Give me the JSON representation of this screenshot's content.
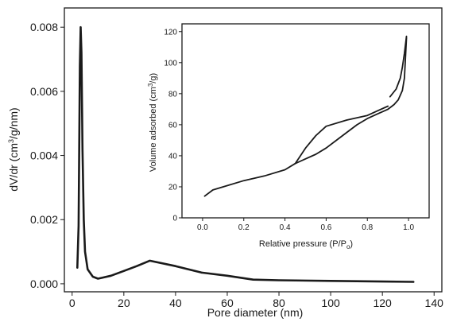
{
  "chart_data": [
    {
      "type": "line",
      "xlabel": "Pore diameter (nm)",
      "ylabel_main": "dV/dr (cm",
      "ylabel_sup": "3",
      "ylabel_rest": "/g/nm)",
      "xlim": [
        -3,
        143
      ],
      "ylim": [
        -0.00025,
        0.0086
      ],
      "xticks": [
        "0",
        "20",
        "40",
        "60",
        "80",
        "100",
        "120",
        "140"
      ],
      "yticks": [
        "0.000",
        "0.002",
        "0.004",
        "0.006",
        "0.008"
      ],
      "series": [
        {
          "x": [
            2.0,
            2.5,
            3.0,
            3.3,
            3.6,
            4.0,
            4.5,
            5.0,
            6.0,
            8.0,
            10.0,
            15.0,
            20.0,
            25.0,
            30.0,
            40.0,
            50.0,
            60.0,
            70.0,
            80.0,
            100.0,
            120.0,
            132.0
          ],
          "y": [
            0.0005,
            0.0018,
            0.0068,
            0.008,
            0.0072,
            0.0042,
            0.002,
            0.001,
            0.00045,
            0.00022,
            0.00016,
            0.00025,
            0.0004,
            0.00055,
            0.00072,
            0.00055,
            0.00035,
            0.00025,
            0.00013,
            0.00011,
            9e-05,
            7e-05,
            6e-05
          ]
        }
      ]
    },
    {
      "type": "line",
      "xlabel_main": "Relative pressure (P/P",
      "xlabel_sub": "o",
      "xlabel_rest": ")",
      "ylabel_main": "Volume adsorbed (cm",
      "ylabel_sup": "3",
      "ylabel_rest": "/g)",
      "xlim": [
        -0.1,
        1.1
      ],
      "ylim": [
        0,
        125
      ],
      "xticks": [
        "0.0",
        "0.2",
        "0.4",
        "0.6",
        "0.8",
        "1.0"
      ],
      "yticks": [
        "0",
        "20",
        "40",
        "60",
        "80",
        "100",
        "120"
      ],
      "series": [
        {
          "x": [
            0.01,
            0.05,
            0.1,
            0.2,
            0.3,
            0.4,
            0.45,
            0.5,
            0.55,
            0.6,
            0.7,
            0.8,
            0.85,
            0.9
          ],
          "y": [
            14,
            18,
            20,
            24,
            27,
            31,
            35,
            45,
            53,
            59,
            63,
            66,
            69,
            72
          ]
        },
        {
          "x": [
            0.45,
            0.5,
            0.55,
            0.6,
            0.65,
            0.7,
            0.75,
            0.8,
            0.85,
            0.9,
            0.93,
            0.95,
            0.97,
            0.98,
            0.99
          ],
          "y": [
            35,
            38,
            41,
            45,
            50,
            55,
            60,
            64,
            67,
            70,
            73,
            76,
            82,
            90,
            116
          ]
        },
        {
          "x": [
            0.91,
            0.94,
            0.96,
            0.97,
            0.98,
            0.99
          ],
          "y": [
            78,
            83,
            90,
            97,
            106,
            117
          ]
        }
      ]
    }
  ]
}
